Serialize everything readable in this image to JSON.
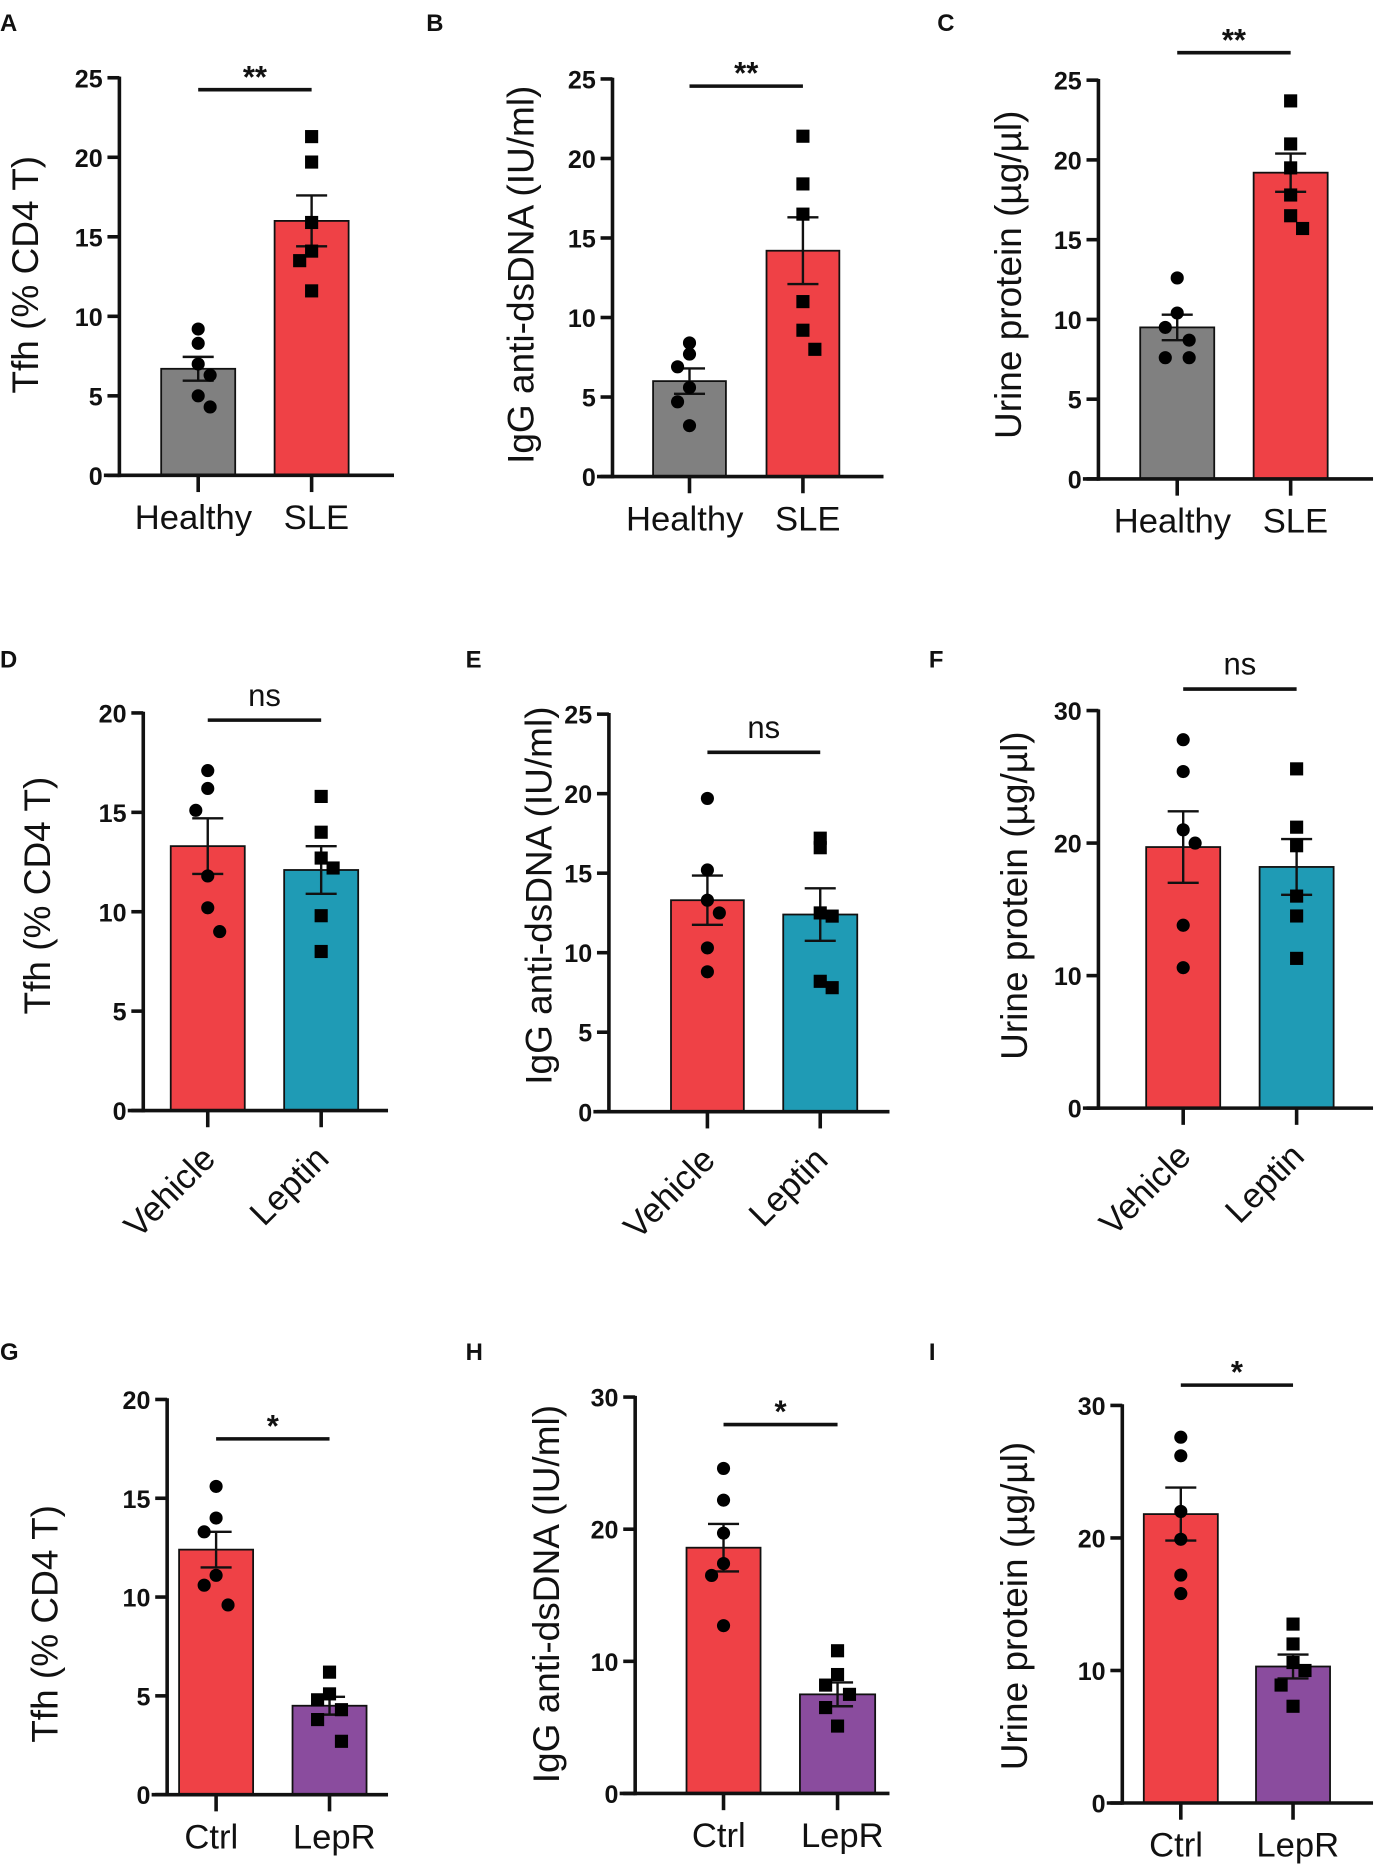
{
  "chart_data": [
    {
      "panel": "A",
      "type": "bar",
      "ylabel": "Tfh (% CD4 T)",
      "ylim": [
        0,
        25
      ],
      "yticks": [
        0,
        5,
        10,
        15,
        20,
        25
      ],
      "significance": "**",
      "groups": [
        {
          "name": "Healthy",
          "mean": 6.7,
          "sem": 0.75,
          "color": "#808080",
          "marker": "circle",
          "points": [
            9.2,
            8.3,
            7.0,
            6.3,
            5.0,
            4.3
          ]
        },
        {
          "name": "SLE",
          "mean": 16.0,
          "sem": 1.6,
          "color": "#EF4146",
          "marker": "square",
          "points": [
            21.3,
            19.7,
            15.9,
            14.1,
            13.5,
            11.6
          ]
        }
      ]
    },
    {
      "panel": "B",
      "type": "bar",
      "ylabel": "IgG anti-dsDNA (IU/ml)",
      "ylim": [
        0,
        25
      ],
      "yticks": [
        0,
        5,
        10,
        15,
        20,
        25
      ],
      "significance": "**",
      "groups": [
        {
          "name": "Healthy",
          "mean": 6.0,
          "sem": 0.8,
          "color": "#808080",
          "marker": "circle",
          "points": [
            8.4,
            7.7,
            6.9,
            5.6,
            4.7,
            3.2
          ]
        },
        {
          "name": "SLE",
          "mean": 14.2,
          "sem": 2.1,
          "color": "#EF4146",
          "marker": "square",
          "points": [
            21.4,
            18.4,
            16.5,
            11.0,
            9.2,
            8.0
          ]
        }
      ]
    },
    {
      "panel": "C",
      "type": "bar",
      "ylabel": "Urine protein (µg/µl)",
      "ylim": [
        0,
        25
      ],
      "yticks": [
        0,
        5,
        10,
        15,
        20,
        25
      ],
      "significance": "**",
      "groups": [
        {
          "name": "Healthy",
          "mean": 9.5,
          "sem": 0.8,
          "color": "#808080",
          "marker": "circle",
          "points": [
            12.6,
            10.4,
            9.5,
            8.7,
            7.6,
            7.6
          ]
        },
        {
          "name": "SLE",
          "mean": 19.2,
          "sem": 1.2,
          "color": "#EF4146",
          "marker": "square",
          "points": [
            23.7,
            21.0,
            19.5,
            17.8,
            16.5,
            15.7
          ]
        }
      ]
    },
    {
      "panel": "D",
      "type": "bar",
      "ylabel": "Tfh (% CD4 T)",
      "ylim": [
        0,
        20
      ],
      "yticks": [
        0,
        5,
        10,
        15,
        20
      ],
      "significance": "ns",
      "groups": [
        {
          "name": "Vehicle",
          "mean": 13.3,
          "sem": 1.4,
          "color": "#EF4146",
          "marker": "circle",
          "points": [
            17.1,
            16.2,
            15.1,
            11.8,
            10.2,
            9.0
          ]
        },
        {
          "name": "Leptin",
          "mean": 12.1,
          "sem": 1.2,
          "color": "#1F9BB5",
          "marker": "square",
          "points": [
            15.8,
            14.0,
            12.7,
            12.2,
            9.8,
            8.0
          ]
        }
      ]
    },
    {
      "panel": "E",
      "type": "bar",
      "ylabel": "IgG anti-dsDNA (IU/ml)",
      "ylim": [
        0,
        25
      ],
      "yticks": [
        0,
        5,
        10,
        15,
        20,
        25
      ],
      "significance": "ns",
      "groups": [
        {
          "name": "Vehicle",
          "mean": 13.3,
          "sem": 1.55,
          "color": "#EF4146",
          "marker": "circle",
          "points": [
            19.7,
            15.2,
            13.3,
            12.5,
            10.3,
            8.8
          ]
        },
        {
          "name": "Leptin",
          "mean": 12.4,
          "sem": 1.65,
          "color": "#1F9BB5",
          "marker": "square",
          "points": [
            17.2,
            16.6,
            12.5,
            12.3,
            8.2,
            7.8
          ]
        }
      ]
    },
    {
      "panel": "F",
      "type": "bar",
      "ylabel": "Urine protein (µg/µl)",
      "ylim": [
        0,
        30
      ],
      "yticks": [
        0,
        10,
        20,
        30
      ],
      "significance": "ns",
      "groups": [
        {
          "name": "Vehicle",
          "mean": 19.7,
          "sem": 2.7,
          "color": "#EF4146",
          "marker": "circle",
          "points": [
            27.8,
            25.4,
            21.0,
            20.0,
            13.8,
            10.6
          ]
        },
        {
          "name": "Leptin",
          "mean": 18.2,
          "sem": 2.1,
          "color": "#1F9BB5",
          "marker": "square",
          "points": [
            25.6,
            21.2,
            19.8,
            16.0,
            14.5,
            11.3
          ]
        }
      ]
    },
    {
      "panel": "G",
      "type": "bar",
      "ylabel": "Tfh (% CD4 T)",
      "ylim": [
        0,
        20
      ],
      "yticks": [
        0,
        5,
        10,
        15,
        20
      ],
      "significance": "*",
      "groups": [
        {
          "name": "Ctrl",
          "mean": 12.4,
          "sem": 0.9,
          "color": "#EF4146",
          "marker": "circle",
          "points": [
            15.6,
            14.0,
            13.3,
            11.1,
            10.6,
            9.6
          ]
        },
        {
          "name": "LepR",
          "mean": 4.5,
          "sem": 0.45,
          "color": "#8A4C9E",
          "marker": "square",
          "points": [
            6.2,
            5.1,
            4.8,
            4.3,
            3.8,
            2.7
          ]
        }
      ]
    },
    {
      "panel": "H",
      "type": "bar",
      "ylabel": "IgG anti-dsDNA (IU/ml)",
      "ylim": [
        0,
        30
      ],
      "yticks": [
        0,
        10,
        20,
        30
      ],
      "significance": "*",
      "groups": [
        {
          "name": "Ctrl",
          "mean": 18.6,
          "sem": 1.8,
          "color": "#EF4146",
          "marker": "circle",
          "points": [
            24.6,
            22.2,
            19.7,
            17.4,
            16.5,
            12.7
          ]
        },
        {
          "name": "LepR",
          "mean": 7.5,
          "sem": 0.9,
          "color": "#8A4C9E",
          "marker": "square",
          "points": [
            10.8,
            9.0,
            8.2,
            7.5,
            6.5,
            5.1
          ]
        }
      ]
    },
    {
      "panel": "I",
      "type": "bar",
      "ylabel": "Urine protein (µg/µl)",
      "ylim": [
        0,
        30
      ],
      "yticks": [
        0,
        10,
        20,
        30
      ],
      "significance": "*",
      "groups": [
        {
          "name": "Ctrl",
          "mean": 21.8,
          "sem": 2.0,
          "color": "#EF4146",
          "marker": "circle",
          "points": [
            27.6,
            26.2,
            22.0,
            19.9,
            17.2,
            15.8
          ]
        },
        {
          "name": "LepR",
          "mean": 10.3,
          "sem": 0.9,
          "color": "#8A4C9E",
          "marker": "square",
          "points": [
            13.5,
            12.0,
            10.6,
            10.0,
            8.9,
            7.3
          ]
        }
      ]
    }
  ]
}
